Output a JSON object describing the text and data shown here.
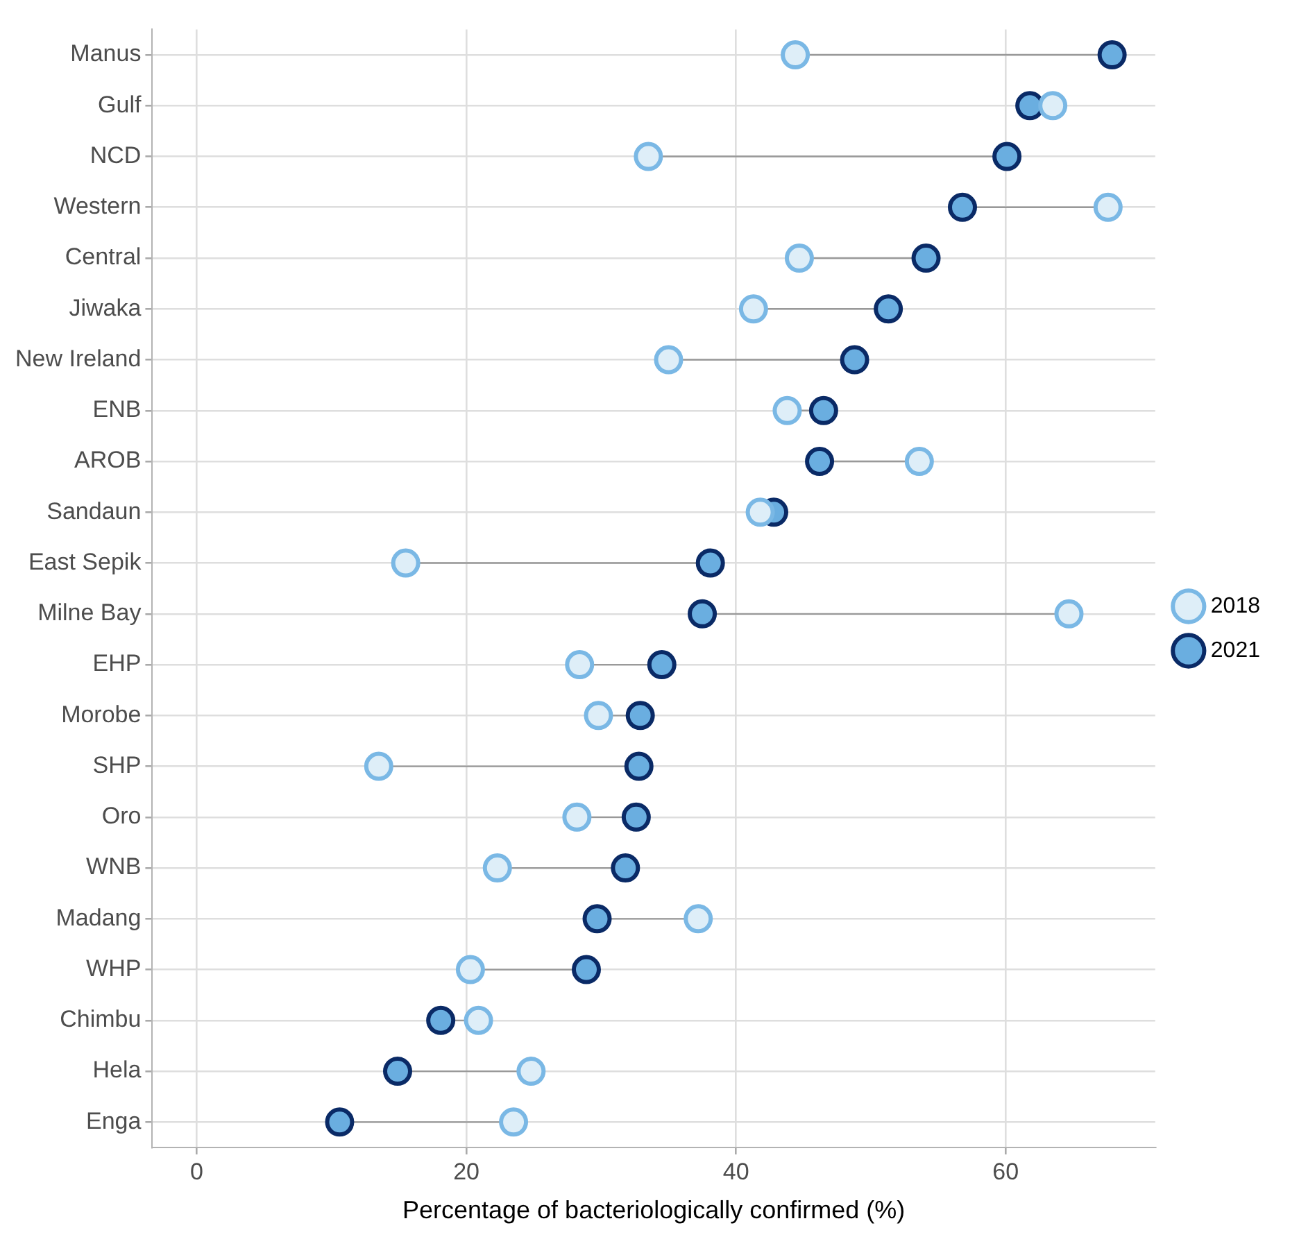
{
  "chart_data": {
    "type": "scatter",
    "xlabel": "Percentage of bacteriologically confirmed (%)",
    "categories": [
      "Manus",
      "Gulf",
      "NCD",
      "Western",
      "Central",
      "Jiwaka",
      "New Ireland",
      "ENB",
      "AROB",
      "Sandaun",
      "East Sepik",
      "Milne Bay",
      "EHP",
      "Morobe",
      "SHP",
      "Oro",
      "WNB",
      "Madang",
      "WHP",
      "Chimbu",
      "Hela",
      "Enga"
    ],
    "series": [
      {
        "name": "2018",
        "color": "#deeef8",
        "values": [
          44.4,
          63.5,
          33.5,
          67.6,
          44.7,
          41.3,
          35.0,
          43.8,
          53.6,
          41.8,
          15.5,
          64.7,
          28.4,
          29.8,
          13.5,
          28.2,
          22.3,
          37.2,
          20.3,
          20.9,
          24.8,
          23.5
        ]
      },
      {
        "name": "2021",
        "color": "#6aaee0",
        "values": [
          67.9,
          61.8,
          60.1,
          56.8,
          54.1,
          51.3,
          48.8,
          46.5,
          46.2,
          42.8,
          38.1,
          37.5,
          34.5,
          32.9,
          32.8,
          32.6,
          31.8,
          29.7,
          28.9,
          18.1,
          14.9,
          10.6
        ]
      }
    ],
    "orientation": "horizontal",
    "xlim": [
      -3.3,
      71.1
    ],
    "xticks": [
      0,
      20,
      40,
      60
    ],
    "grid": true,
    "legend": "right",
    "marker": "circle"
  }
}
